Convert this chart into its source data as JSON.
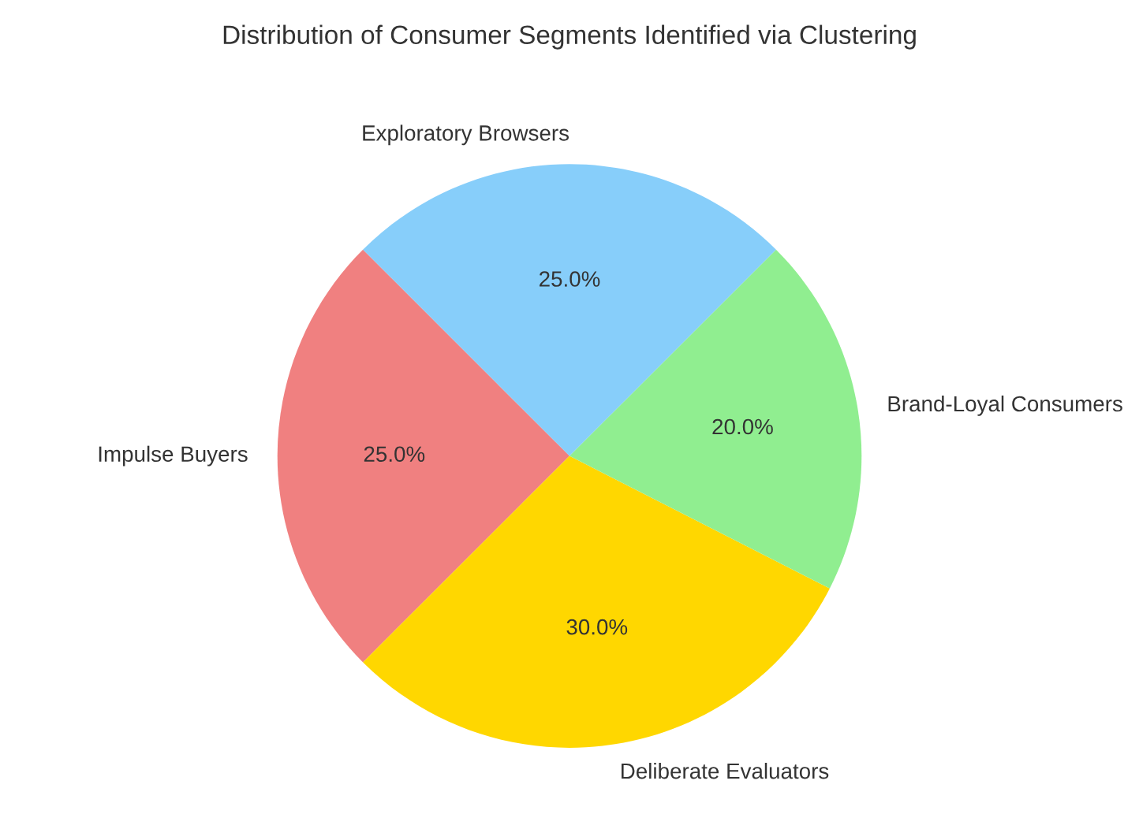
{
  "chart_data": {
    "type": "pie",
    "title": "Distribution of Consumer Segments Identified via Clustering",
    "categories": [
      "Impulse Buyers",
      "Deliberate Evaluators",
      "Brand-Loyal Consumers",
      "Exploratory Browsers"
    ],
    "values": [
      25,
      30,
      20,
      25
    ],
    "colors": [
      "#f08080",
      "#ffd700",
      "#90ee90",
      "#87cefa"
    ],
    "value_labels": [
      "25.0%",
      "30.0%",
      "20.0%",
      "25.0%"
    ],
    "legend": false
  }
}
